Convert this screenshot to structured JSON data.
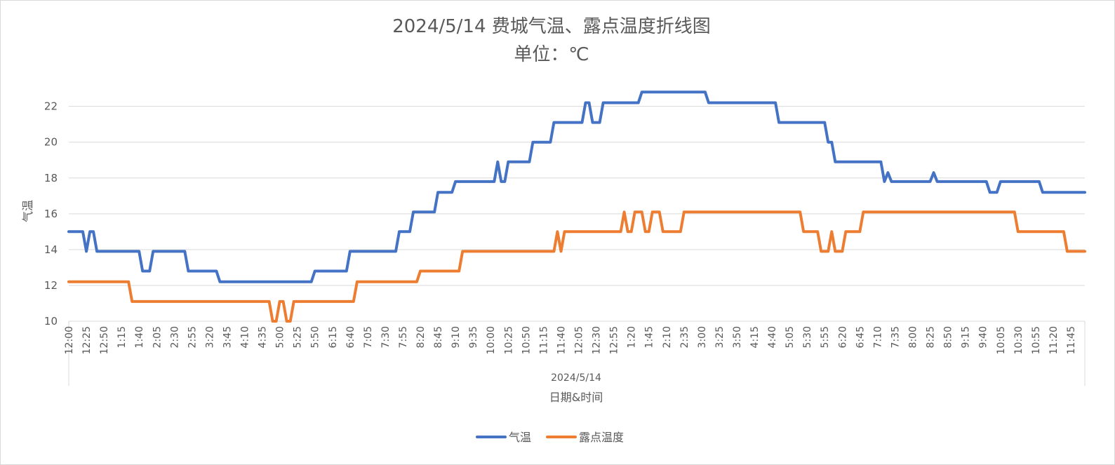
{
  "chart_data": {
    "type": "line",
    "title": "2024/5/14 费城气温、露点温度折线图",
    "subtitle": "单位：℃",
    "ylabel": "气温",
    "xlabel_group": "2024/5/14",
    "xlabel": "日期&时间",
    "ylim": [
      10,
      23.2
    ],
    "yticks": [
      10,
      12,
      14,
      16,
      18,
      20,
      22
    ],
    "grid": true,
    "legend_position": "bottom",
    "x_tick_labels": [
      "12:00",
      "12:25",
      "12:50",
      "1:15",
      "1:40",
      "2:05",
      "2:30",
      "2:55",
      "3:20",
      "3:45",
      "4:10",
      "4:35",
      "5:00",
      "5:25",
      "5:50",
      "6:15",
      "6:40",
      "7:05",
      "7:30",
      "7:55",
      "8:20",
      "8:45",
      "9:10",
      "9:35",
      "10:00",
      "10:25",
      "10:50",
      "11:15",
      "11:40",
      "12:05",
      "12:30",
      "12:55",
      "1:20",
      "1:45",
      "2:10",
      "2:35",
      "3:00",
      "3:25",
      "3:50",
      "4:15",
      "4:40",
      "5:05",
      "5:30",
      "5:55",
      "6:20",
      "6:45",
      "7:10",
      "7:35",
      "8:00",
      "8:25",
      "8:50",
      "9:15",
      "9:40",
      "10:05",
      "10:30",
      "10:55",
      "11:20",
      "11:45"
    ],
    "x_tick_step": 5,
    "x_count": 289,
    "series": [
      {
        "name": "气温",
        "color": "#4472c4",
        "points": [
          [
            0,
            15
          ],
          [
            4,
            15
          ],
          [
            5,
            13.9
          ],
          [
            6,
            15
          ],
          [
            7,
            15
          ],
          [
            8,
            13.9
          ],
          [
            20,
            13.9
          ],
          [
            21,
            12.8
          ],
          [
            23,
            12.8
          ],
          [
            24,
            13.9
          ],
          [
            33,
            13.9
          ],
          [
            34,
            12.8
          ],
          [
            42,
            12.8
          ],
          [
            43,
            12.2
          ],
          [
            69,
            12.2
          ],
          [
            70,
            12.8
          ],
          [
            79,
            12.8
          ],
          [
            80,
            13.9
          ],
          [
            93,
            13.9
          ],
          [
            94,
            15
          ],
          [
            97,
            15
          ],
          [
            98,
            16.1
          ],
          [
            104,
            16.1
          ],
          [
            105,
            17.2
          ],
          [
            109,
            17.2
          ],
          [
            110,
            17.8
          ],
          [
            121,
            17.8
          ],
          [
            122,
            18.9
          ],
          [
            123,
            17.8
          ],
          [
            124,
            17.8
          ],
          [
            125,
            18.9
          ],
          [
            131,
            18.9
          ],
          [
            132,
            20
          ],
          [
            137,
            20
          ],
          [
            138,
            21.1
          ],
          [
            146,
            21.1
          ],
          [
            147,
            22.2
          ],
          [
            148,
            22.2
          ],
          [
            149,
            21.1
          ],
          [
            151,
            21.1
          ],
          [
            152,
            22.2
          ],
          [
            162,
            22.2
          ],
          [
            163,
            22.8
          ],
          [
            181,
            22.8
          ],
          [
            182,
            22.2
          ],
          [
            201,
            22.2
          ],
          [
            202,
            21.1
          ],
          [
            215,
            21.1
          ],
          [
            216,
            20
          ],
          [
            217,
            20
          ],
          [
            218,
            18.9
          ],
          [
            231,
            18.9
          ],
          [
            232,
            17.8
          ],
          [
            233,
            18.3
          ],
          [
            234,
            17.8
          ],
          [
            245,
            17.8
          ],
          [
            246,
            18.3
          ],
          [
            247,
            17.8
          ],
          [
            261,
            17.8
          ],
          [
            262,
            17.2
          ],
          [
            264,
            17.2
          ],
          [
            265,
            17.8
          ],
          [
            276,
            17.8
          ],
          [
            277,
            17.2
          ],
          [
            289,
            17.2
          ]
        ]
      },
      {
        "name": "露点温度",
        "color": "#ed7d31",
        "points": [
          [
            0,
            12.2
          ],
          [
            17,
            12.2
          ],
          [
            18,
            11.1
          ],
          [
            57,
            11.1
          ],
          [
            58,
            10
          ],
          [
            59,
            10
          ],
          [
            60,
            11.1
          ],
          [
            61,
            11.1
          ],
          [
            62,
            10
          ],
          [
            63,
            10
          ],
          [
            64,
            11.1
          ],
          [
            81,
            11.1
          ],
          [
            82,
            12.2
          ],
          [
            99,
            12.2
          ],
          [
            100,
            12.8
          ],
          [
            111,
            12.8
          ],
          [
            112,
            13.9
          ],
          [
            138,
            13.9
          ],
          [
            139,
            15
          ],
          [
            140,
            13.9
          ],
          [
            141,
            15
          ],
          [
            157,
            15
          ],
          [
            158,
            16.1
          ],
          [
            159,
            15
          ],
          [
            160,
            15
          ],
          [
            161,
            16.1
          ],
          [
            163,
            16.1
          ],
          [
            164,
            15
          ],
          [
            165,
            15
          ],
          [
            166,
            16.1
          ],
          [
            168,
            16.1
          ],
          [
            169,
            15
          ],
          [
            174,
            15
          ],
          [
            175,
            16.1
          ],
          [
            208,
            16.1
          ],
          [
            209,
            15
          ],
          [
            213,
            15
          ],
          [
            214,
            13.9
          ],
          [
            216,
            13.9
          ],
          [
            217,
            15
          ],
          [
            218,
            13.9
          ],
          [
            220,
            13.9
          ],
          [
            221,
            15
          ],
          [
            225,
            15
          ],
          [
            226,
            16.1
          ],
          [
            269,
            16.1
          ],
          [
            270,
            15
          ],
          [
            283,
            15
          ],
          [
            284,
            13.9
          ],
          [
            289,
            13.9
          ]
        ]
      }
    ]
  }
}
